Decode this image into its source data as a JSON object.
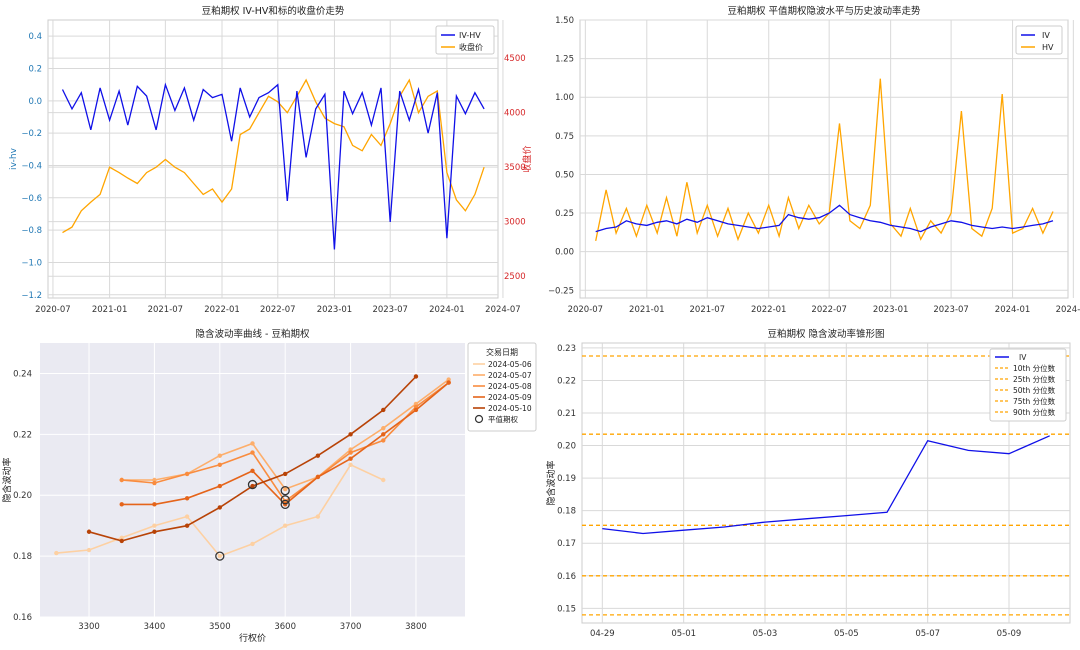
{
  "colors": {
    "iv_blue": "#1010e8",
    "close_orange": "#ffa500",
    "axis_left_blue": "#1f77b4",
    "axis_right_red": "#d62728",
    "grid": "#d9d9d9",
    "bg_gray": "#eaeaf2",
    "atm_marker": "#333333",
    "date_lines": [
      "#fdd0a2",
      "#fdae6b",
      "#f98c3f",
      "#e5641a",
      "#b84307"
    ]
  },
  "chart_data": [
    {
      "id": "chart1",
      "type": "line",
      "title": "豆粕期权 IV-HV和标的收盘价走势",
      "xlabel": "",
      "ylabel": "iv-hv",
      "y2label": "收盘价",
      "x_ticks": [
        "2020-07",
        "2021-01",
        "2021-07",
        "2022-01",
        "2022-07",
        "2023-01",
        "2023-07",
        "2024-01",
        "2024-07"
      ],
      "xlim": [
        "2020-06-15",
        "2024-06-15"
      ],
      "ylim": [
        -1.22,
        0.5
      ],
      "y_ticks": [
        0.4,
        0.2,
        0.0,
        -0.2,
        -0.4,
        -0.6,
        -0.8,
        -1.0,
        -1.2
      ],
      "y_tick_labels": [
        "0.4",
        "0.2",
        "0.0",
        "−0.2",
        "−0.4",
        "−0.6",
        "−0.8",
        "−1.0",
        "−1.2"
      ],
      "y2lim": [
        2300,
        4850
      ],
      "y2_ticks": [
        4500,
        4000,
        3500,
        3000,
        2500
      ],
      "y2_tick_labels": [
        "4500",
        "4000",
        "3500",
        "3000",
        "2500"
      ],
      "legend_position": "top-right",
      "series": [
        {
          "name": "IV-HV",
          "axis": "left",
          "x": [
            "2020-08-01",
            "2020-09-01",
            "2020-10-01",
            "2020-11-01",
            "2020-12-01",
            "2021-01-01",
            "2021-02-01",
            "2021-03-01",
            "2021-04-01",
            "2021-05-01",
            "2021-06-01",
            "2021-07-01",
            "2021-08-01",
            "2021-09-01",
            "2021-10-01",
            "2021-11-01",
            "2021-12-01",
            "2022-01-01",
            "2022-02-01",
            "2022-03-01",
            "2022-04-01",
            "2022-05-01",
            "2022-06-01",
            "2022-07-01",
            "2022-08-01",
            "2022-09-01",
            "2022-10-01",
            "2022-11-01",
            "2022-12-01",
            "2023-01-01",
            "2023-02-01",
            "2023-03-01",
            "2023-04-01",
            "2023-05-01",
            "2023-06-01",
            "2023-07-01",
            "2023-08-01",
            "2023-09-01",
            "2023-10-01",
            "2023-11-01",
            "2023-12-01",
            "2024-01-01",
            "2024-02-01",
            "2024-03-01",
            "2024-04-01",
            "2024-05-01"
          ],
          "values": [
            0.07,
            -0.05,
            0.05,
            -0.18,
            0.08,
            -0.12,
            0.06,
            -0.15,
            0.09,
            0.03,
            -0.18,
            0.1,
            -0.06,
            0.08,
            -0.12,
            0.07,
            0.02,
            0.04,
            -0.25,
            0.08,
            -0.1,
            0.02,
            0.05,
            0.1,
            -0.62,
            0.06,
            -0.35,
            -0.05,
            0.04,
            -0.92,
            0.06,
            -0.08,
            0.05,
            -0.15,
            0.08,
            -0.75,
            0.06,
            -0.12,
            0.07,
            -0.2,
            0.05,
            -0.85,
            0.03,
            -0.08,
            0.05,
            -0.05
          ]
        },
        {
          "name": "收盘价",
          "axis": "right",
          "x": [
            "2020-08-01",
            "2020-09-01",
            "2020-10-01",
            "2020-11-01",
            "2020-12-01",
            "2021-01-01",
            "2021-02-01",
            "2021-03-01",
            "2021-04-01",
            "2021-05-01",
            "2021-06-01",
            "2021-07-01",
            "2021-08-01",
            "2021-09-01",
            "2021-10-01",
            "2021-11-01",
            "2021-12-01",
            "2022-01-01",
            "2022-02-01",
            "2022-03-01",
            "2022-04-01",
            "2022-05-01",
            "2022-06-01",
            "2022-07-01",
            "2022-08-01",
            "2022-09-01",
            "2022-10-01",
            "2022-11-01",
            "2022-12-01",
            "2023-01-01",
            "2023-02-01",
            "2023-03-01",
            "2023-04-01",
            "2023-05-01",
            "2023-06-01",
            "2023-07-01",
            "2023-08-01",
            "2023-09-01",
            "2023-10-01",
            "2023-11-01",
            "2023-12-01",
            "2024-01-01",
            "2024-02-01",
            "2024-03-01",
            "2024-04-01",
            "2024-05-01"
          ],
          "values": [
            2900,
            2950,
            3100,
            3180,
            3250,
            3500,
            3450,
            3400,
            3350,
            3450,
            3500,
            3570,
            3500,
            3450,
            3350,
            3250,
            3300,
            3180,
            3300,
            3800,
            3850,
            4000,
            4150,
            4100,
            4000,
            4150,
            4300,
            4100,
            3950,
            3900,
            3870,
            3700,
            3650,
            3800,
            3700,
            3900,
            4150,
            4300,
            4000,
            4150,
            4200,
            3450,
            3200,
            3100,
            3250,
            3500
          ]
        }
      ]
    },
    {
      "id": "chart2",
      "type": "line",
      "title": "豆粕期权 平值期权隐波水平与历史波动率走势",
      "xlabel": "",
      "ylabel": "",
      "x_ticks": [
        "2020-07",
        "2021-01",
        "2021-07",
        "2022-01",
        "2022-07",
        "2023-01",
        "2023-07",
        "2024-01",
        "2024-07"
      ],
      "xlim": [
        "2020-06-15",
        "2024-06-15"
      ],
      "ylim": [
        -0.3,
        1.5
      ],
      "y_ticks": [
        1.5,
        1.25,
        1.0,
        0.75,
        0.5,
        0.25,
        0.0,
        -0.25
      ],
      "y_tick_labels": [
        "1.50",
        "1.25",
        "1.00",
        "0.75",
        "0.50",
        "0.25",
        "0.00",
        "−0.25"
      ],
      "legend_position": "top-right",
      "series": [
        {
          "name": "IV",
          "x": [
            "2020-08-01",
            "2020-09-01",
            "2020-10-01",
            "2020-11-01",
            "2020-12-01",
            "2021-01-01",
            "2021-02-01",
            "2021-03-01",
            "2021-04-01",
            "2021-05-01",
            "2021-06-01",
            "2021-07-01",
            "2021-08-01",
            "2021-09-01",
            "2021-10-01",
            "2021-11-01",
            "2021-12-01",
            "2022-01-01",
            "2022-02-01",
            "2022-03-01",
            "2022-04-01",
            "2022-05-01",
            "2022-06-01",
            "2022-07-01",
            "2022-08-01",
            "2022-09-01",
            "2022-10-01",
            "2022-11-01",
            "2022-12-01",
            "2023-01-01",
            "2023-02-01",
            "2023-03-01",
            "2023-04-01",
            "2023-05-01",
            "2023-06-01",
            "2023-07-01",
            "2023-08-01",
            "2023-09-01",
            "2023-10-01",
            "2023-11-01",
            "2023-12-01",
            "2024-01-01",
            "2024-02-01",
            "2024-03-01",
            "2024-04-01",
            "2024-05-01"
          ],
          "values": [
            0.13,
            0.15,
            0.16,
            0.2,
            0.18,
            0.17,
            0.19,
            0.2,
            0.18,
            0.21,
            0.19,
            0.22,
            0.2,
            0.18,
            0.17,
            0.16,
            0.15,
            0.16,
            0.17,
            0.24,
            0.22,
            0.21,
            0.22,
            0.25,
            0.3,
            0.24,
            0.22,
            0.2,
            0.19,
            0.17,
            0.16,
            0.15,
            0.13,
            0.16,
            0.18,
            0.2,
            0.19,
            0.17,
            0.16,
            0.15,
            0.16,
            0.15,
            0.16,
            0.17,
            0.18,
            0.2
          ]
        },
        {
          "name": "HV",
          "x": [
            "2020-08-01",
            "2020-09-01",
            "2020-10-01",
            "2020-11-01",
            "2020-12-01",
            "2021-01-01",
            "2021-02-01",
            "2021-03-01",
            "2021-04-01",
            "2021-05-01",
            "2021-06-01",
            "2021-07-01",
            "2021-08-01",
            "2021-09-01",
            "2021-10-01",
            "2021-11-01",
            "2021-12-01",
            "2022-01-01",
            "2022-02-01",
            "2022-03-01",
            "2022-04-01",
            "2022-05-01",
            "2022-06-01",
            "2022-07-01",
            "2022-08-01",
            "2022-09-01",
            "2022-10-01",
            "2022-11-01",
            "2022-12-01",
            "2023-01-01",
            "2023-02-01",
            "2023-03-01",
            "2023-04-01",
            "2023-05-01",
            "2023-06-01",
            "2023-07-01",
            "2023-08-01",
            "2023-09-01",
            "2023-10-01",
            "2023-11-01",
            "2023-12-01",
            "2024-01-01",
            "2024-02-01",
            "2024-03-01",
            "2024-04-01",
            "2024-05-01"
          ],
          "values": [
            0.07,
            0.4,
            0.12,
            0.28,
            0.1,
            0.3,
            0.12,
            0.35,
            0.1,
            0.45,
            0.12,
            0.3,
            0.1,
            0.28,
            0.08,
            0.25,
            0.12,
            0.3,
            0.1,
            0.35,
            0.15,
            0.3,
            0.18,
            0.25,
            0.83,
            0.2,
            0.15,
            0.3,
            1.12,
            0.18,
            0.1,
            0.28,
            0.08,
            0.2,
            0.12,
            0.25,
            0.91,
            0.15,
            0.1,
            0.28,
            1.02,
            0.12,
            0.15,
            0.28,
            0.12,
            0.26
          ]
        }
      ]
    },
    {
      "id": "chart3",
      "type": "line",
      "title": "隐含波动率曲线 - 豆粕期权",
      "xlabel": "行权价",
      "ylabel": "隐含波动率",
      "xlim": [
        3225,
        3875
      ],
      "x_ticks": [
        3300,
        3400,
        3500,
        3600,
        3700,
        3800
      ],
      "x_tick_labels": [
        "3300",
        "3400",
        "3500",
        "3600",
        "3700",
        "3800"
      ],
      "ylim": [
        0.16,
        0.25
      ],
      "y_ticks": [
        0.16,
        0.18,
        0.2,
        0.22,
        0.24
      ],
      "y_tick_labels": [
        "0.16",
        "0.18",
        "0.20",
        "0.22",
        "0.24"
      ],
      "legend_title": "交易日期",
      "legend_position": "outside-right",
      "atm_label": "平值期权",
      "series": [
        {
          "name": "2024-05-06",
          "x": [
            3250,
            3300,
            3350,
            3400,
            3450,
            3500,
            3550,
            3600,
            3650,
            3700,
            3750
          ],
          "values": [
            0.181,
            0.182,
            0.186,
            0.19,
            0.193,
            0.18,
            0.184,
            0.19,
            0.193,
            0.21,
            0.205
          ]
        },
        {
          "name": "2024-05-07",
          "x": [
            3350,
            3400,
            3450,
            3500,
            3550,
            3600,
            3650,
            3700,
            3750,
            3800,
            3850
          ],
          "values": [
            0.205,
            0.205,
            0.207,
            0.213,
            0.217,
            0.202,
            0.206,
            0.215,
            0.222,
            0.23,
            0.238
          ]
        },
        {
          "name": "2024-05-08",
          "x": [
            3350,
            3400,
            3450,
            3500,
            3550,
            3600,
            3650,
            3700,
            3750,
            3800,
            3850
          ],
          "values": [
            0.205,
            0.204,
            0.207,
            0.21,
            0.214,
            0.198,
            0.206,
            0.214,
            0.218,
            0.229,
            0.237
          ]
        },
        {
          "name": "2024-05-09",
          "x": [
            3350,
            3400,
            3450,
            3500,
            3550,
            3600,
            3650,
            3700,
            3750,
            3800,
            3850
          ],
          "values": [
            0.197,
            0.197,
            0.199,
            0.203,
            0.208,
            0.197,
            0.206,
            0.212,
            0.22,
            0.228,
            0.237
          ]
        },
        {
          "name": "2024-05-10",
          "x": [
            3300,
            3350,
            3400,
            3450,
            3500,
            3550,
            3600,
            3650,
            3700,
            3750,
            3800
          ],
          "values": [
            0.188,
            0.185,
            0.188,
            0.19,
            0.196,
            0.203,
            0.207,
            0.213,
            0.22,
            0.228,
            0.239
          ]
        }
      ],
      "atm_points": [
        {
          "x": 3500,
          "y": 0.18
        },
        {
          "x": 3550,
          "y": 0.2035
        },
        {
          "x": 3600,
          "y": 0.2015
        },
        {
          "x": 3600,
          "y": 0.1985
        },
        {
          "x": 3600,
          "y": 0.197
        }
      ]
    },
    {
      "id": "chart4",
      "type": "line",
      "title": "豆粕期权 隐含波动率锥形图",
      "xlabel": "",
      "ylabel": "隐含波动率",
      "categories": [
        "04-29",
        "04-30",
        "05-01",
        "05-02",
        "05-03",
        "05-04",
        "05-05",
        "05-06",
        "05-07",
        "05-08",
        "05-09",
        "05-10"
      ],
      "x_ticks": [
        "04-29",
        "05-01",
        "05-03",
        "05-05",
        "05-07",
        "05-09"
      ],
      "xlim": [
        -0.5,
        11.5
      ],
      "ylim": [
        0.1455,
        0.2315
      ],
      "y_ticks": [
        0.15,
        0.16,
        0.17,
        0.18,
        0.19,
        0.2,
        0.21,
        0.22,
        0.23
      ],
      "y_tick_labels": [
        "0.15",
        "0.16",
        "0.17",
        "0.18",
        "0.19",
        "0.20",
        "0.21",
        "0.22",
        "0.23"
      ],
      "legend_position": "top-right",
      "series": [
        {
          "name": "IV",
          "values": [
            0.1745,
            0.173,
            0.174,
            0.175,
            0.1765,
            0.1775,
            0.1785,
            0.1795,
            0.2015,
            0.1985,
            0.1975,
            0.203
          ]
        }
      ],
      "percentiles": [
        {
          "name": "10th 分位数",
          "value": 0.148
        },
        {
          "name": "25th 分位数",
          "value": 0.16
        },
        {
          "name": "50th 分位数",
          "value": 0.1755
        },
        {
          "name": "75th 分位数",
          "value": 0.2035
        },
        {
          "name": "90th 分位数",
          "value": 0.2275
        }
      ]
    }
  ]
}
